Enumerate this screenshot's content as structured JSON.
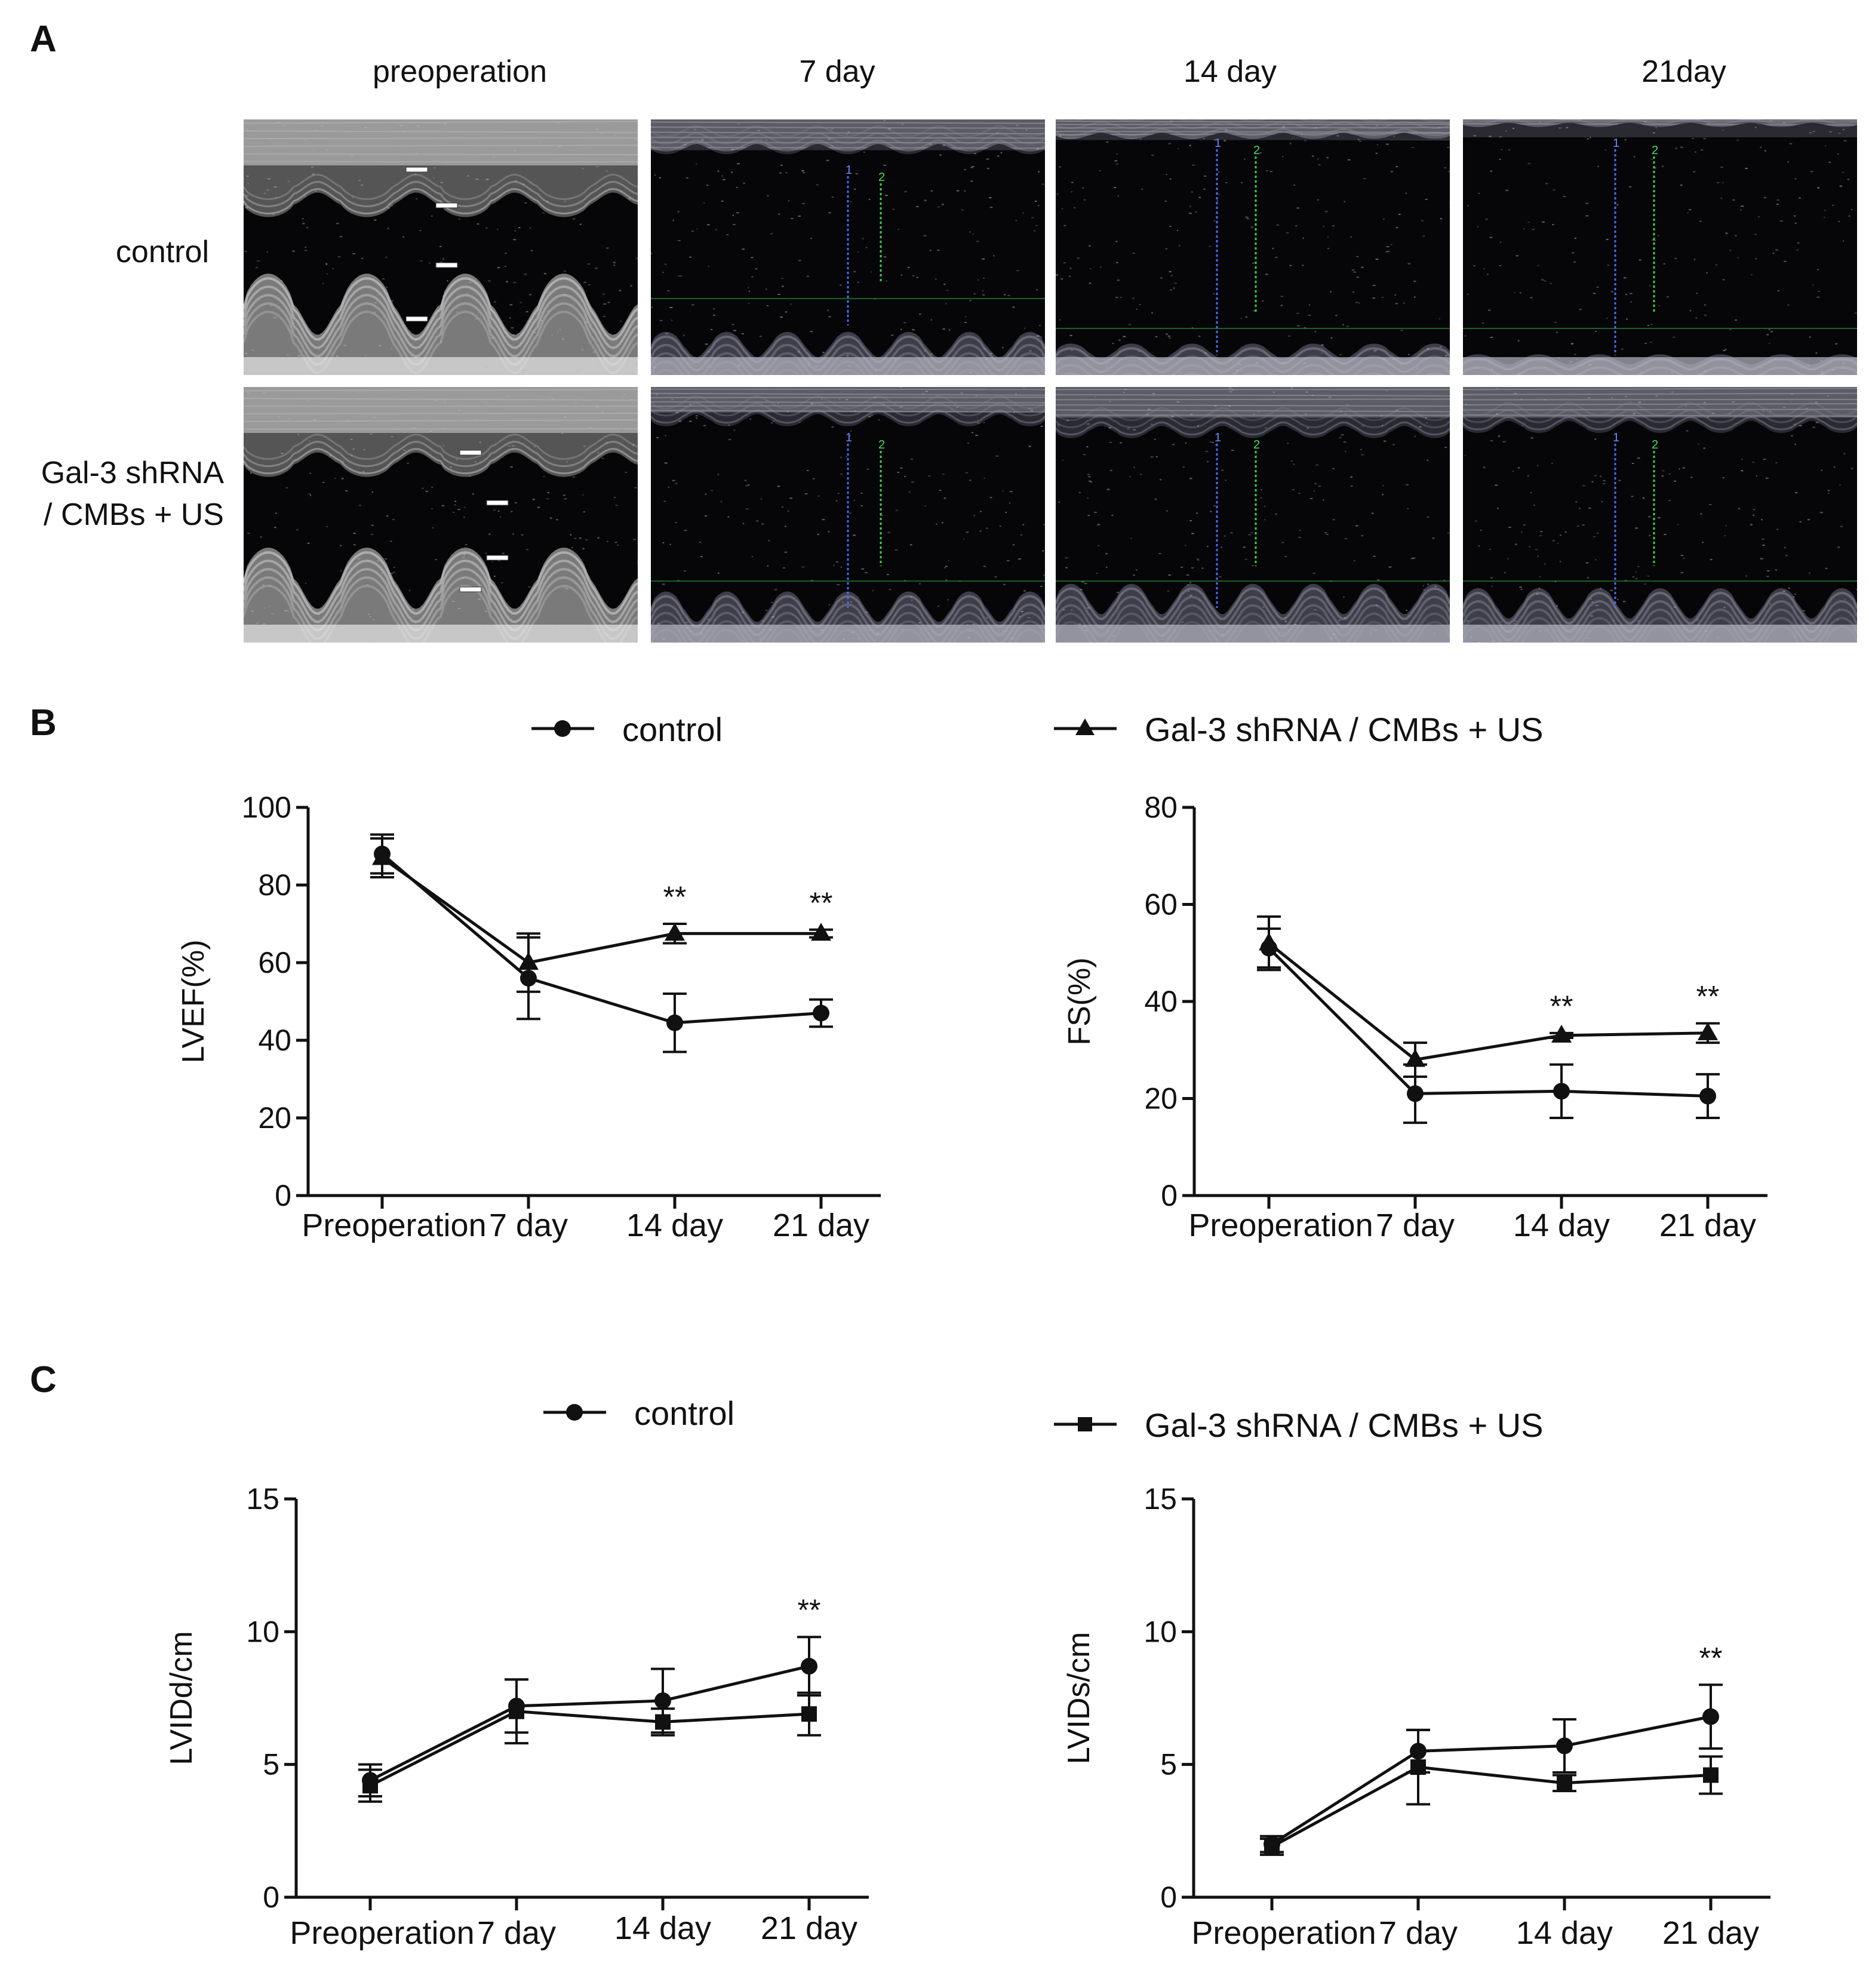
{
  "panels": {
    "a": "A",
    "b": "B",
    "c": "C"
  },
  "panel_a": {
    "columns": [
      "preoperation",
      "7 day",
      "14 day",
      "21day"
    ],
    "rows": [
      {
        "label_lines": [
          "control"
        ]
      },
      {
        "label_lines": [
          "Gal-3 shRNA",
          "/ CMBs + US"
        ]
      }
    ],
    "caliper_labels": [
      "1",
      "2"
    ]
  },
  "legend_b": {
    "control": "control",
    "treated": "Gal-3 shRNA / CMBs + US"
  },
  "legend_c": {
    "control": "control",
    "treated": "Gal-3 shRNA / CMBs + US"
  },
  "chart_data": [
    {
      "type": "line",
      "panel": "B",
      "ylabel": "LVEF(%)",
      "xlabel": "",
      "categories": [
        "Preoperation",
        "7 day",
        "14 day",
        "21 day"
      ],
      "ylim": [
        0,
        100
      ],
      "yticks": [
        0,
        20,
        40,
        60,
        80,
        100
      ],
      "series": [
        {
          "name": "control",
          "marker": "circle",
          "values": [
            88,
            56,
            44.5,
            47
          ],
          "errors": [
            5,
            10.5,
            7.5,
            3.5
          ]
        },
        {
          "name": "Gal-3 shRNA / CMBs + US",
          "marker": "triangle",
          "values": [
            87,
            60,
            67.5,
            67.5
          ],
          "errors": [
            5,
            7.5,
            2.5,
            1
          ]
        }
      ],
      "annotations": [
        {
          "category": "14 day",
          "text": "**"
        },
        {
          "category": "21 day",
          "text": "**"
        }
      ]
    },
    {
      "type": "line",
      "panel": "B",
      "ylabel": "FS(%)",
      "xlabel": "",
      "categories": [
        "Preoperation",
        "7 day",
        "14 day",
        "21 day"
      ],
      "ylim": [
        0,
        80
      ],
      "yticks": [
        0,
        20,
        40,
        60,
        80
      ],
      "series": [
        {
          "name": "control",
          "marker": "circle",
          "values": [
            51,
            21,
            21.5,
            20.5
          ],
          "errors": [
            4,
            6,
            5.5,
            4.5
          ]
        },
        {
          "name": "Gal-3 shRNA / CMBs + US",
          "marker": "triangle",
          "values": [
            52,
            28,
            33,
            33.5
          ],
          "errors": [
            5.5,
            3.5,
            0.5,
            2
          ]
        }
      ],
      "annotations": [
        {
          "category": "14 day",
          "text": "**"
        },
        {
          "category": "21 day",
          "text": "**"
        }
      ]
    },
    {
      "type": "line",
      "panel": "C",
      "ylabel": "LVIDd/cm",
      "xlabel": "",
      "categories": [
        "Preoperation",
        "7 day",
        "14 day",
        "21 day"
      ],
      "ylim": [
        0,
        15
      ],
      "yticks": [
        0,
        5,
        10,
        15
      ],
      "series": [
        {
          "name": "control",
          "marker": "circle",
          "values": [
            4.4,
            7.2,
            7.4,
            8.7
          ],
          "errors": [
            0.6,
            1.0,
            1.2,
            1.1
          ]
        },
        {
          "name": "Gal-3 shRNA / CMBs + US",
          "marker": "square",
          "values": [
            4.2,
            7.0,
            6.6,
            6.9
          ],
          "errors": [
            0.6,
            1.2,
            0.5,
            0.8
          ]
        }
      ],
      "annotations": [
        {
          "category": "21 day",
          "text": "**"
        }
      ]
    },
    {
      "type": "line",
      "panel": "C",
      "ylabel": "LVIDs/cm",
      "xlabel": "",
      "categories": [
        "Preoperation",
        "7 day",
        "14 day",
        "21 day"
      ],
      "ylim": [
        0,
        15
      ],
      "yticks": [
        0,
        5,
        10,
        15
      ],
      "series": [
        {
          "name": "control",
          "marker": "circle",
          "values": [
            2.0,
            5.5,
            5.7,
            6.8
          ],
          "errors": [
            0.3,
            0.8,
            1.0,
            1.2
          ]
        },
        {
          "name": "Gal-3 shRNA / CMBs + US",
          "marker": "square",
          "values": [
            1.9,
            4.9,
            4.3,
            4.6
          ],
          "errors": [
            0.3,
            1.4,
            0.3,
            0.7
          ]
        }
      ],
      "annotations": [
        {
          "category": "21 day",
          "text": "**"
        }
      ]
    }
  ]
}
